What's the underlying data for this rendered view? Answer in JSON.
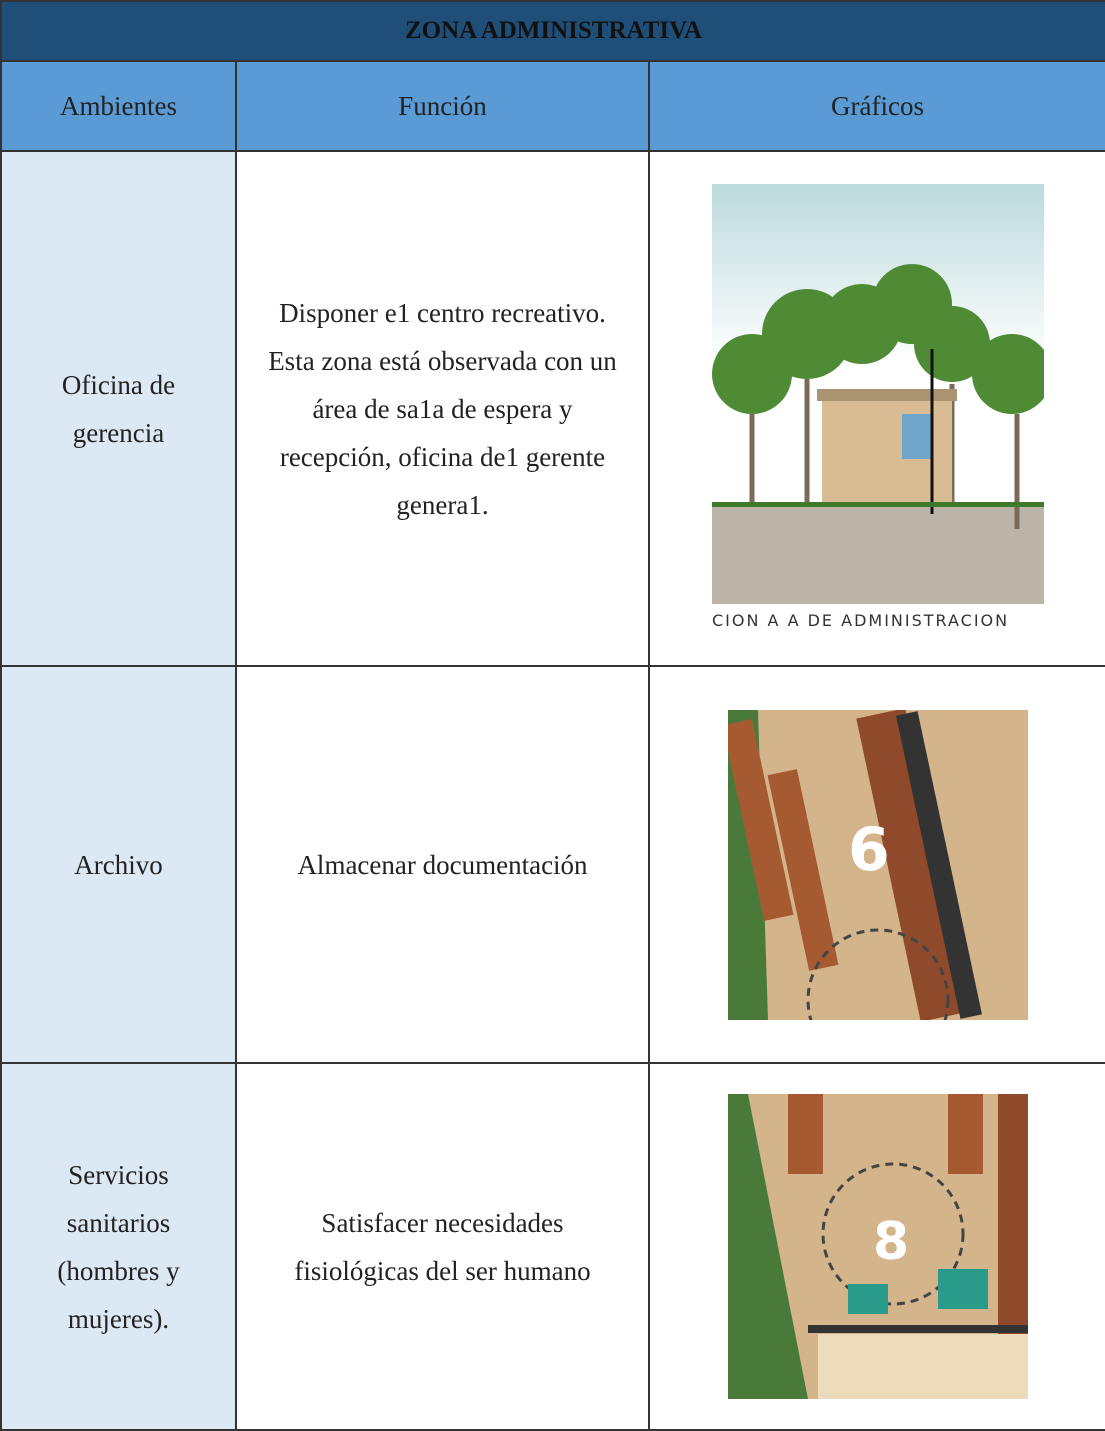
{
  "table": {
    "title": "ZONA ADMINISTRATIVA",
    "headers": [
      "Ambientes",
      "Función",
      "Gráficos"
    ],
    "rows": [
      {
        "ambiente": "Oficina de gerencia",
        "funcion": "Disponer e1 centro recreativo. Esta zona está observada con un área de sa1a de espera y recepción, oficina de1 gerente genera1.",
        "grafico_texto": "CION A A DE ADMINISTRACION"
      },
      {
        "ambiente": "Archivo",
        "funcion": "Almacenar documentación",
        "grafico_texto": "6"
      },
      {
        "ambiente": "Servicios sanitarios (hombres y mujeres).",
        "funcion": "Satisfacer necesidades fisiológicas del ser humano",
        "grafico_texto": "8"
      }
    ]
  }
}
